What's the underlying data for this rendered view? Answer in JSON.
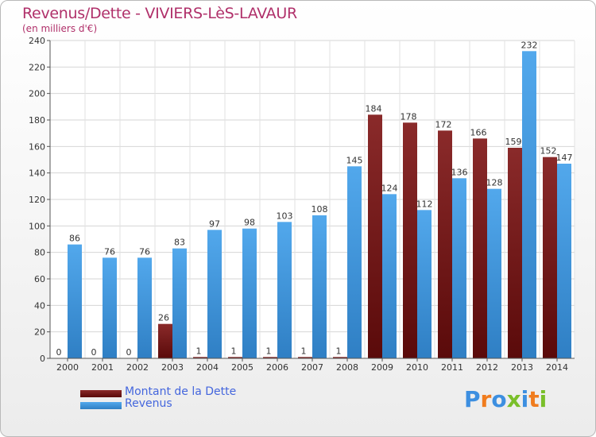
{
  "chart_data": {
    "type": "bar",
    "title": "Revenus/Dette - VIVIERS-LèS-LAVAUR",
    "subtitle": "(en milliers d'€)",
    "categories": [
      "2000",
      "2001",
      "2002",
      "2003",
      "2004",
      "2005",
      "2006",
      "2007",
      "2008",
      "2009",
      "2010",
      "2011",
      "2012",
      "2013",
      "2014"
    ],
    "series": [
      {
        "name": "Montant de la Dette",
        "color": "#7a1a1a",
        "values": [
          0,
          0,
          0,
          26,
          1,
          1,
          1,
          1,
          1,
          184,
          178,
          172,
          166,
          159,
          152
        ]
      },
      {
        "name": "Revenus",
        "color": "#3f9ae0",
        "values": [
          86,
          76,
          76,
          83,
          97,
          98,
          103,
          108,
          145,
          124,
          112,
          136,
          128,
          232,
          147
        ]
      }
    ],
    "ylim": [
      0,
      240
    ],
    "yticks": [
      0,
      20,
      40,
      60,
      80,
      100,
      120,
      140,
      160,
      180,
      200,
      220,
      240
    ],
    "grid": true,
    "legend": "bottom-left"
  },
  "logo": {
    "letters": [
      "P",
      "r",
      "o",
      "x",
      "i",
      "t",
      "i"
    ],
    "colors": [
      "#3d8fe0",
      "#f07c1e",
      "#3d8fe0",
      "#7abf2a",
      "#3d8fe0",
      "#f07c1e",
      "#7abf2a"
    ]
  }
}
